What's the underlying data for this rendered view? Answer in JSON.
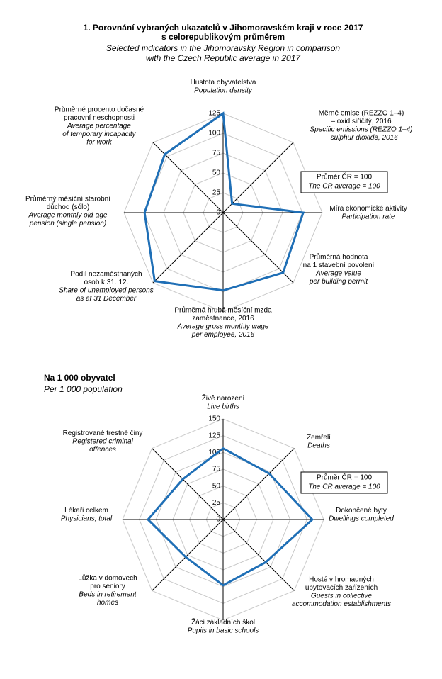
{
  "chart_data": [
    {
      "type": "radar",
      "title": [
        "1. Porovnání vybraných ukazatelů v Jihomoravském  kraji v roce 2017",
        "s celorepublikovým průměrem"
      ],
      "subtitle": [
        "Selected indicators in the Jihomoravský  Region  in comparison",
        "with the Czech Republic average  in 2017"
      ],
      "categories": [
        [
          "Hustota obyvatelstva"
        ],
        [
          "Měrné emise (REZZO  1–4)",
          "– oxid siřičitý, 2016"
        ],
        [
          "Míra ekonomické aktivity"
        ],
        [
          "Průměrná hodnota",
          "na 1 stavební povolení"
        ],
        [
          "Průměrná hrubá měsíční mzda",
          "zaměstnance, 2016"
        ],
        [
          "Podíl nezaměstnaných",
          "osob k 31. 12."
        ],
        [
          "Průměrný měsíční starobní",
          "důchod (sólo)"
        ],
        [
          "Průměrné procento dočasné",
          "pracovní neschopnosti"
        ]
      ],
      "categories_en": [
        [
          "Population density"
        ],
        [
          "Specific emissions (REZZO 1–4)",
          "– sulphur dioxide, 2016"
        ],
        [
          "Participation rate"
        ],
        [
          "Average value",
          "per building permit"
        ],
        [
          "Average gross monthly wage",
          "per employee, 2016"
        ],
        [
          "Share of unemployed persons",
          "as at 31 December"
        ],
        [
          "Average monthly old-age",
          "pension (single pension)"
        ],
        [
          "Average percentage",
          "of temporary incapacity",
          "for work"
        ]
      ],
      "values": [
        125,
        16,
        101,
        107,
        98,
        122,
        99,
        104
      ],
      "color": "#1f6fb6",
      "ylim": [
        0,
        125
      ],
      "yticks": [
        0,
        25,
        50,
        75,
        100,
        125
      ],
      "note": [
        "Průměr  ČR = 100",
        "The CR average  = 100"
      ]
    },
    {
      "type": "radar",
      "title": [
        "Na 1 000 obyvatel"
      ],
      "subtitle": [
        "Per 1 000 population"
      ],
      "categories": [
        [
          "Živě narození"
        ],
        [
          "Zemřelí"
        ],
        [
          "Dokončené byty"
        ],
        [
          "Hosté v hromadných",
          "ubytovacích zařízeních"
        ],
        [
          "Žáci základních škol"
        ],
        [
          "Lůžka v domovech",
          "pro seniory"
        ],
        [
          "Lékaři celkem"
        ],
        [
          "Registrované trestné činy"
        ]
      ],
      "categories_en": [
        [
          "Live births"
        ],
        [
          "Deaths"
        ],
        [
          "Dwellings completed"
        ],
        [
          "Guests in collective",
          "accommodation establishments"
        ],
        [
          "Pupils in basic schools"
        ],
        [
          "Beds in retirement",
          "homes"
        ],
        [
          "Physicians, total"
        ],
        [
          "Registered criminal",
          "offences"
        ]
      ],
      "values": [
        106,
        97,
        133,
        90,
        98,
        79,
        112,
        85
      ],
      "color": "#1f6fb6",
      "ylim": [
        0,
        150
      ],
      "yticks": [
        0,
        25,
        50,
        75,
        100,
        125,
        150
      ],
      "note": [
        "Průměr  ČR = 100",
        "The CR average = 100"
      ]
    }
  ]
}
